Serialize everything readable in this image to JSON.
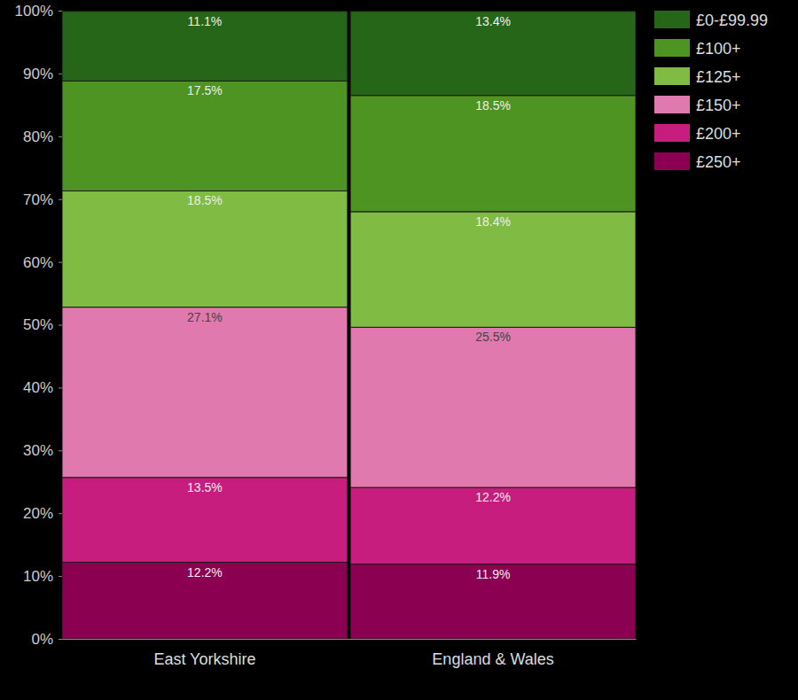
{
  "chart_data": {
    "type": "bar",
    "stacked": true,
    "data_labels": true,
    "legend": "right",
    "categories": [
      "East Yorkshire",
      "England & Wales"
    ],
    "ylim": [
      0,
      100
    ],
    "yticks": [
      {
        "value": 0,
        "label": "0%"
      },
      {
        "value": 10,
        "label": "10%"
      },
      {
        "value": 20,
        "label": "20%"
      },
      {
        "value": 30,
        "label": "30%"
      },
      {
        "value": 40,
        "label": "40%"
      },
      {
        "value": 50,
        "label": "50%"
      },
      {
        "value": 60,
        "label": "60%"
      },
      {
        "value": 70,
        "label": "70%"
      },
      {
        "value": 80,
        "label": "80%"
      },
      {
        "value": 90,
        "label": "90%"
      },
      {
        "value": 100,
        "label": "100%"
      }
    ],
    "series": [
      {
        "name": "£0-£99.99",
        "color": "#266619",
        "values": [
          11.1,
          13.4
        ],
        "value_labels": [
          "11.1%",
          "13.4%"
        ]
      },
      {
        "name": "£100+",
        "color": "#4d9422",
        "values": [
          17.5,
          18.5
        ],
        "value_labels": [
          "17.5%",
          "18.5%"
        ]
      },
      {
        "name": "£125+",
        "color": "#80bb44",
        "values": [
          18.5,
          18.4
        ],
        "value_labels": [
          "18.5%",
          "18.4%"
        ]
      },
      {
        "name": "£150+",
        "color": "#e07aae",
        "values": [
          27.1,
          25.5
        ],
        "value_labels": [
          "27.1%",
          "25.5%"
        ]
      },
      {
        "name": "£200+",
        "color": "#c71d7e",
        "values": [
          13.5,
          12.2
        ],
        "value_labels": [
          "13.5%",
          "12.2%"
        ]
      },
      {
        "name": "£250+",
        "color": "#8b0050",
        "values": [
          12.2,
          11.9
        ],
        "value_labels": [
          "12.2%",
          "11.9%"
        ]
      }
    ]
  }
}
